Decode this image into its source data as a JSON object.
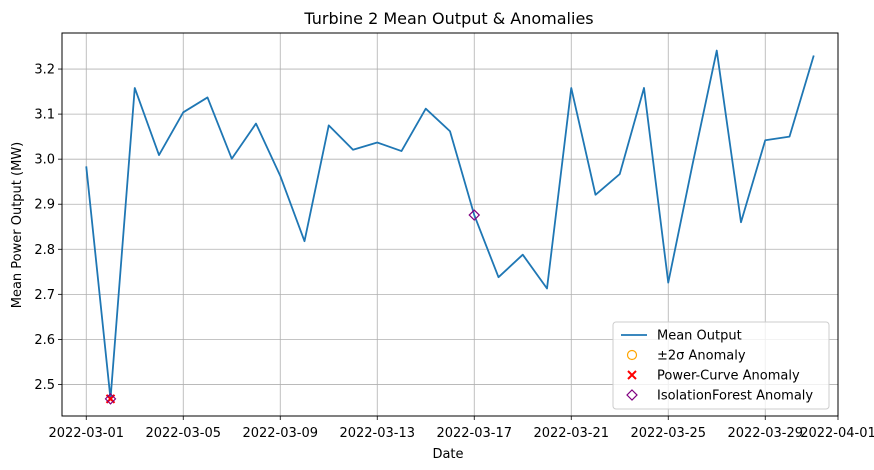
{
  "chart_data": {
    "type": "line",
    "title": "Turbine 2 Mean Output & Anomalies",
    "xlabel": "Date",
    "ylabel": "Mean Power Output (MW)",
    "xlim": [
      "2022-02-28",
      "2022-04-01"
    ],
    "ylim": [
      2.43,
      3.28
    ],
    "grid": true,
    "legend_position": "bottom-right",
    "x_ticks": [
      "2022-03-01",
      "2022-03-05",
      "2022-03-09",
      "2022-03-13",
      "2022-03-17",
      "2022-03-21",
      "2022-03-25",
      "2022-03-29",
      "2022-04-01"
    ],
    "y_ticks": [
      2.5,
      2.6,
      2.7,
      2.8,
      2.9,
      3.0,
      3.1,
      3.2
    ],
    "series": [
      {
        "name": "Mean Output",
        "kind": "line",
        "color": "#1f77b4",
        "x": [
          "2022-03-01",
          "2022-03-02",
          "2022-03-03",
          "2022-03-04",
          "2022-03-05",
          "2022-03-06",
          "2022-03-07",
          "2022-03-08",
          "2022-03-09",
          "2022-03-10",
          "2022-03-11",
          "2022-03-12",
          "2022-03-13",
          "2022-03-14",
          "2022-03-15",
          "2022-03-16",
          "2022-03-17",
          "2022-03-18",
          "2022-03-19",
          "2022-03-20",
          "2022-03-21",
          "2022-03-22",
          "2022-03-23",
          "2022-03-24",
          "2022-03-25",
          "2022-03-26",
          "2022-03-27",
          "2022-03-28",
          "2022-03-29",
          "2022-03-30",
          "2022-03-31"
        ],
        "y": [
          2.984,
          2.468,
          3.158,
          3.009,
          3.104,
          3.137,
          3.001,
          3.079,
          2.963,
          2.818,
          3.075,
          3.021,
          3.037,
          3.018,
          3.112,
          3.062,
          2.876,
          2.738,
          2.788,
          2.713,
          3.158,
          2.921,
          2.967,
          3.158,
          2.726,
          2.988,
          3.241,
          2.86,
          3.042,
          3.05,
          3.23
        ]
      },
      {
        "name": "±2σ Anomaly",
        "kind": "marker",
        "marker": "hollow-circle",
        "color": "#ffa500",
        "x": [],
        "y": []
      },
      {
        "name": "Power-Curve Anomaly",
        "kind": "marker",
        "marker": "x",
        "color": "#ff0000",
        "x": [
          "2022-03-02"
        ],
        "y": [
          2.468
        ]
      },
      {
        "name": "IsolationForest Anomaly",
        "kind": "marker",
        "marker": "hollow-diamond",
        "color": "#800080",
        "x": [
          "2022-03-02",
          "2022-03-17"
        ],
        "y": [
          2.468,
          2.876
        ]
      }
    ]
  }
}
